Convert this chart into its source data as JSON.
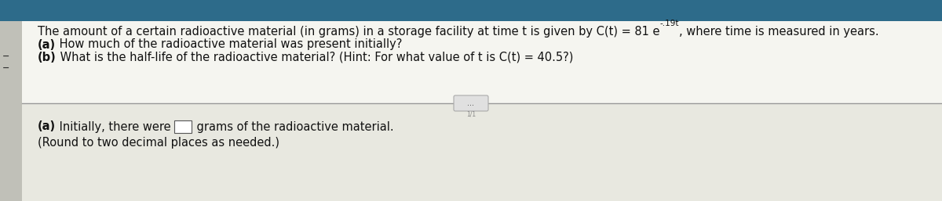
{
  "bg_top": "#2d6b8a",
  "bg_left_strip": "#b8b8b0",
  "bg_main": "#d8d8d0",
  "panel_top_bg": "#f5f5f0",
  "panel_bottom_bg": "#e8e8e0",
  "line1_main": "The amount of a certain radioactive material (in grams) in a storage facility at time t is given by C(t) = 81 e",
  "exponent": "-.19t",
  "line1_suffix": ", where time is measured in years.",
  "line2_bold": "(a)",
  "line2_rest": " How much of the radioactive material was present initially?",
  "line3_bold": "(b)",
  "line3_rest": " What is the half-life of the radioactive material? (Hint: For what value of t is C(t) = 40.5?)",
  "btn_text": "...",
  "bottom_bold": "(a)",
  "bottom_pre": " Initially, there were ",
  "bottom_post": " grams of the radioactive material.",
  "bottom_line2": "(Round to two decimal places as needed.)",
  "font_size": 10.5,
  "small_font_size": 7.5,
  "text_color": "#111111",
  "divider_color": "#999999",
  "left_marker": "−",
  "left_marker2": "−"
}
